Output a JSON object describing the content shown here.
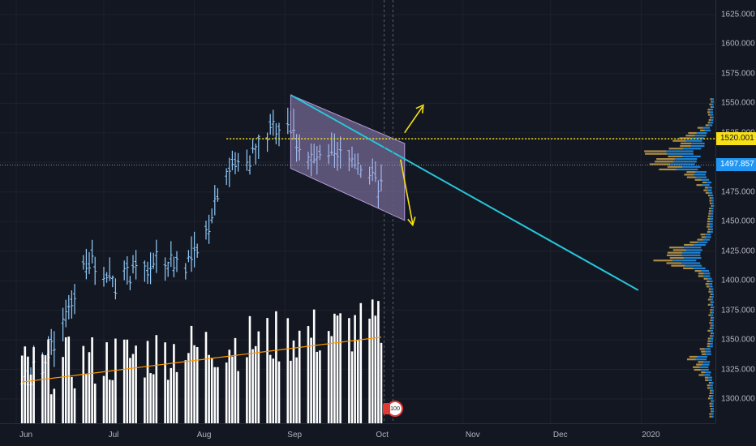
{
  "price_axis": {
    "ticks": [
      "1625.000",
      "1600.000",
      "1575.000",
      "1550.000",
      "1525.000",
      "1500.000",
      "1475.000",
      "1450.000",
      "1425.000",
      "1400.000",
      "1375.000",
      "1350.000",
      "1325.000",
      "1300.000"
    ],
    "tags": [
      {
        "label": "1520.001",
        "bg": "#f7e017",
        "fg": "#131722"
      },
      {
        "label": "1497.857",
        "bg": "#2196f3",
        "fg": "#ffffff"
      }
    ]
  },
  "time_axis": {
    "labels": [
      "Jun",
      "Jul",
      "Aug",
      "Sep",
      "Oct",
      "Nov",
      "Dec",
      "2020"
    ]
  },
  "event_badge": {
    "label": "100"
  },
  "colors": {
    "background": "#131722",
    "bar_up": "#90caf9",
    "volume": "#ffffff",
    "volume_ma": "#ff9800",
    "trendline": "#26c6da",
    "level": "#f7e017",
    "arrows": "#f7e017",
    "channel": "#b39ddb",
    "profile_up": "#2196f3",
    "profile_down": "#c7a24d"
  },
  "chart_data": {
    "type": "line",
    "ylim": [
      1280,
      1635
    ],
    "horizontal_level": 1520.001,
    "last_price": 1497.857,
    "downtrend_line": {
      "from": {
        "date": "2019-09-03",
        "price": 1557
      },
      "to": {
        "date": "2019-12-31",
        "price": 1392
      }
    },
    "channel": {
      "top": [
        {
          "date": "2019-09-03",
          "price": 1557
        },
        {
          "date": "2019-10-12",
          "price": 1516
        }
      ],
      "bottom": [
        {
          "date": "2019-09-03",
          "price": 1495
        },
        {
          "date": "2019-10-12",
          "price": 1451
        }
      ]
    },
    "axis_ticks": [
      1625,
      1600,
      1575,
      1550,
      1525,
      1500,
      1475,
      1450,
      1425,
      1400,
      1375,
      1350,
      1325,
      1300
    ]
  }
}
